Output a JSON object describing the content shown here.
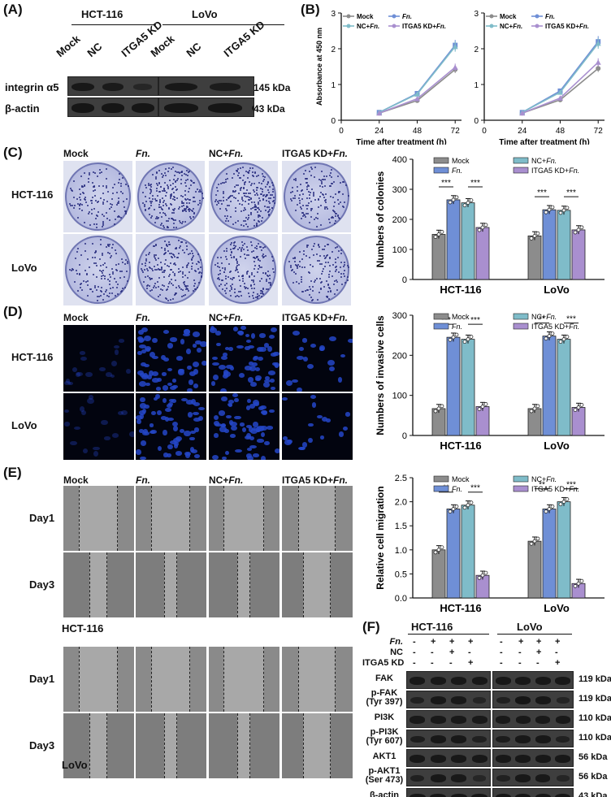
{
  "panels": {
    "A": "(A)",
    "B": "(B)",
    "C": "(C)",
    "D": "(D)",
    "E": "(E)",
    "F": "(F)"
  },
  "cell_lines": [
    "HCT-116",
    "LoVo"
  ],
  "panel_a": {
    "groups": [
      "Mock",
      "NC",
      "ITGA5 KD"
    ],
    "rows": [
      {
        "label": "integrin α5",
        "kda": "145 kDa",
        "levels": [
          0.9,
          0.8,
          0.35,
          0.9,
          0.75,
          0.5
        ]
      },
      {
        "label": "β-actin",
        "kda": "43 kDa",
        "levels": [
          0.95,
          0.95,
          0.95,
          0.95,
          0.95,
          0.95
        ]
      }
    ]
  },
  "treatments": [
    "Mock",
    "Fn.",
    "NC+Fn.",
    "ITGA5 KD+Fn."
  ],
  "treatment_display": [
    {
      "plain": "Mock",
      "italic": ""
    },
    {
      "plain": "",
      "italic": "Fn."
    },
    {
      "plain": "NC+",
      "italic": "Fn."
    },
    {
      "plain": "ITGA5 KD+",
      "italic": "Fn."
    }
  ],
  "colors": {
    "Mock": "#8c8c8c",
    "Fn.": "#6f8fd6",
    "NC+Fn.": "#7fbcc9",
    "ITGA5 KD+Fn.": "#a98fcf"
  },
  "chart_data": [
    {
      "type": "line",
      "id": "B-HCT116",
      "xlabel": "Time after treatment (h)",
      "ylabel": "Absorbance at 450 nm",
      "x": [
        24,
        48,
        72
      ],
      "xticks": [
        0,
        24,
        48,
        72
      ],
      "xlim": [
        0,
        76
      ],
      "ylim": [
        0,
        3
      ],
      "yticks": [
        0,
        1,
        2,
        3
      ],
      "series": [
        {
          "name": "Mock",
          "values": [
            0.2,
            0.55,
            1.42
          ]
        },
        {
          "name": "Fn.",
          "values": [
            0.22,
            0.75,
            2.1
          ]
        },
        {
          "name": "NC+Fn.",
          "values": [
            0.22,
            0.73,
            2.06
          ]
        },
        {
          "name": "ITGA5 KD+Fn.",
          "values": [
            0.2,
            0.6,
            1.48
          ]
        }
      ]
    },
    {
      "type": "line",
      "id": "B-LoVo",
      "xlabel": "Time after treatment (h)",
      "ylabel": "",
      "x": [
        24,
        48,
        72
      ],
      "xticks": [
        0,
        24,
        48,
        72
      ],
      "xlim": [
        0,
        76
      ],
      "ylim": [
        0,
        3
      ],
      "yticks": [
        0,
        1,
        2,
        3
      ],
      "series": [
        {
          "name": "Mock",
          "values": [
            0.2,
            0.57,
            1.45
          ]
        },
        {
          "name": "Fn.",
          "values": [
            0.22,
            0.82,
            2.2
          ]
        },
        {
          "name": "NC+Fn.",
          "values": [
            0.22,
            0.78,
            2.15
          ]
        },
        {
          "name": "ITGA5 KD+Fn.",
          "values": [
            0.2,
            0.62,
            1.62
          ]
        }
      ]
    },
    {
      "type": "bar",
      "id": "C-colonies",
      "ylabel": "Numbers of colonies",
      "categories": [
        "HCT-116",
        "LoVo"
      ],
      "ylim": [
        0,
        400
      ],
      "yticks": [
        0,
        100,
        200,
        300,
        400
      ],
      "series": [
        {
          "name": "Mock",
          "values": [
            150,
            145
          ]
        },
        {
          "name": "Fn.",
          "values": [
            265,
            232
          ]
        },
        {
          "name": "NC+Fn.",
          "values": [
            255,
            230
          ]
        },
        {
          "name": "ITGA5 KD+Fn.",
          "values": [
            173,
            165
          ]
        }
      ],
      "sig": [
        [
          "***",
          "***"
        ],
        [
          "***",
          "***"
        ]
      ]
    },
    {
      "type": "bar",
      "id": "D-invasion",
      "ylabel": "Numbers of invasive cells",
      "categories": [
        "HCT-116",
        "LoVo"
      ],
      "ylim": [
        0,
        300
      ],
      "yticks": [
        0,
        100,
        200,
        300
      ],
      "series": [
        {
          "name": "Mock",
          "values": [
            67,
            67
          ]
        },
        {
          "name": "Fn.",
          "values": [
            245,
            248
          ]
        },
        {
          "name": "NC+Fn.",
          "values": [
            240,
            240
          ]
        },
        {
          "name": "ITGA5 KD+Fn.",
          "values": [
            72,
            70
          ]
        }
      ],
      "sig": [
        [
          "***",
          "***"
        ],
        [
          "**",
          "***"
        ]
      ]
    },
    {
      "type": "bar",
      "id": "E-migration",
      "ylabel": "Relative cell migration",
      "categories": [
        "HCT-116",
        "LoVo"
      ],
      "ylim": [
        0,
        2.5
      ],
      "yticks": [
        0.0,
        0.5,
        1.0,
        1.5,
        2.0,
        2.5
      ],
      "series": [
        {
          "name": "Mock",
          "values": [
            1.0,
            1.18
          ]
        },
        {
          "name": "Fn.",
          "values": [
            1.85,
            1.85
          ]
        },
        {
          "name": "NC+Fn.",
          "values": [
            1.93,
            2.0
          ]
        },
        {
          "name": "ITGA5 KD+Fn.",
          "values": [
            0.47,
            0.3
          ]
        }
      ],
      "sig": [
        [
          "**",
          "***"
        ],
        [
          "**",
          "***"
        ]
      ]
    }
  ],
  "panel_e": {
    "days": [
      "Day1",
      "Day3"
    ],
    "lines": [
      "HCT-116",
      "LoVo"
    ]
  },
  "panel_f": {
    "conditions": [
      {
        "label": "Fn.",
        "signs": [
          "-",
          "+",
          "+",
          "+",
          "-",
          "+",
          "+",
          "+"
        ]
      },
      {
        "label": "NC",
        "signs": [
          "-",
          "-",
          "+",
          "-",
          "-",
          "-",
          "+",
          "-"
        ]
      },
      {
        "label": "ITGA5 KD",
        "signs": [
          "-",
          "-",
          "-",
          "+",
          "-",
          "-",
          "-",
          "+"
        ]
      }
    ],
    "rows": [
      {
        "label": "FAK",
        "kda": "119 kDa",
        "levels": [
          0.9,
          0.9,
          0.9,
          0.9,
          0.9,
          0.9,
          0.9,
          0.9
        ]
      },
      {
        "label": "p-FAK\n(Tyr 397)",
        "kda": "119 kDa",
        "levels": [
          0.6,
          0.9,
          0.85,
          0.4,
          0.6,
          0.95,
          0.9,
          0.45
        ]
      },
      {
        "label": "PI3K",
        "kda": "110 kDa",
        "levels": [
          0.85,
          0.85,
          0.85,
          0.85,
          0.85,
          0.85,
          0.85,
          0.85
        ]
      },
      {
        "label": "p-PI3K\n(Tyr 607)",
        "kda": "110 kDa",
        "levels": [
          0.7,
          0.9,
          0.9,
          0.6,
          0.75,
          0.9,
          0.9,
          0.55
        ]
      },
      {
        "label": "AKT1",
        "kda": "56 kDa",
        "levels": [
          0.9,
          0.9,
          0.9,
          0.9,
          0.9,
          0.9,
          0.9,
          0.9
        ]
      },
      {
        "label": "p-AKT1\n(Ser 473)",
        "kda": "56 kDa",
        "levels": [
          0.6,
          0.9,
          0.85,
          0.35,
          0.55,
          0.9,
          0.85,
          0.4
        ]
      },
      {
        "label": "β-actin",
        "kda": "43 kDa",
        "levels": [
          0.95,
          0.95,
          0.95,
          0.95,
          0.95,
          0.95,
          0.95,
          0.95
        ]
      }
    ]
  }
}
